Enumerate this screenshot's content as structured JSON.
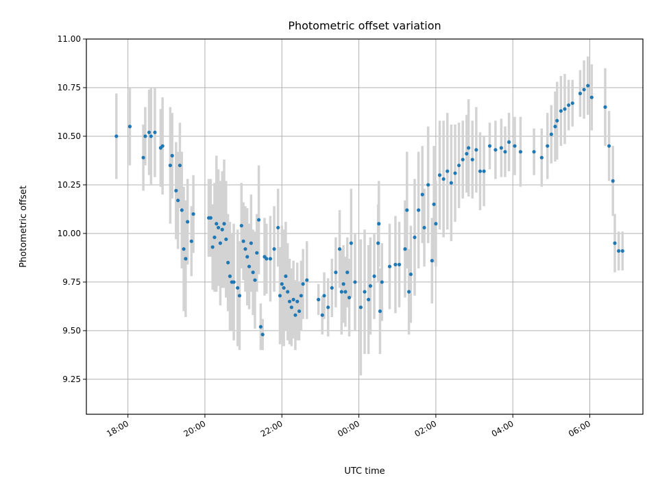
{
  "chart_data": {
    "type": "scatter",
    "title": "Photometric offset variation",
    "xlabel": "UTC time",
    "ylabel": "Photometric offset",
    "x_unit": "hours UTC (values past 24 are after midnight)",
    "xlim": [
      16.92,
      31.38
    ],
    "ylim": [
      9.07,
      11.0
    ],
    "grid": true,
    "x_ticks": [
      {
        "value": 18,
        "label": "18:00"
      },
      {
        "value": 20,
        "label": "20:00"
      },
      {
        "value": 22,
        "label": "22:00"
      },
      {
        "value": 24,
        "label": "00:00"
      },
      {
        "value": 26,
        "label": "02:00"
      },
      {
        "value": 28,
        "label": "04:00"
      },
      {
        "value": 30,
        "label": "06:00"
      }
    ],
    "y_ticks": [
      {
        "value": 9.25,
        "label": "9.25"
      },
      {
        "value": 9.5,
        "label": "9.50"
      },
      {
        "value": 9.75,
        "label": "9.75"
      },
      {
        "value": 10.0,
        "label": "10.00"
      },
      {
        "value": 10.25,
        "label": "10.25"
      },
      {
        "value": 10.5,
        "label": "10.50"
      },
      {
        "value": 10.75,
        "label": "10.75"
      },
      {
        "value": 11.0,
        "label": "11.00"
      }
    ],
    "colors": {
      "points": "#1f77b4",
      "errorbars": "#d3d3d3",
      "grid": "#b0b0b0"
    },
    "series": [
      {
        "x": [
          17.7,
          18.05,
          18.4,
          18.45,
          18.55,
          18.6,
          18.7,
          18.85,
          18.9,
          19.1,
          19.15,
          19.25,
          19.3,
          19.35,
          19.4,
          19.45,
          19.5,
          19.55,
          19.65,
          19.7,
          20.1,
          20.15,
          20.2,
          20.25,
          20.3,
          20.35,
          20.4,
          20.45,
          20.5,
          20.55,
          20.6,
          20.65,
          20.7,
          20.75,
          20.85,
          20.9,
          20.95,
          21.0,
          21.05,
          21.1,
          21.15,
          21.2,
          21.25,
          21.3,
          21.35,
          21.4,
          21.45,
          21.5,
          21.55,
          21.6,
          21.7,
          21.8,
          21.9,
          21.95,
          22.0,
          22.05,
          22.1,
          22.15,
          22.2,
          22.25,
          22.3,
          22.35,
          22.4,
          22.45,
          22.5,
          22.55,
          22.65,
          22.95,
          23.05,
          23.1,
          23.2,
          23.3,
          23.4,
          23.5,
          23.55,
          23.6,
          23.65,
          23.7,
          23.75,
          23.8,
          23.9,
          24.05,
          24.15,
          24.25,
          24.3,
          24.4,
          24.5,
          24.52,
          24.55,
          24.6,
          24.8,
          24.95,
          25.05,
          25.2,
          25.25,
          25.3,
          25.35,
          25.45,
          25.55,
          25.65,
          25.7,
          25.8,
          25.9,
          25.95,
          26.0,
          26.1,
          26.2,
          26.3,
          26.4,
          26.5,
          26.6,
          26.7,
          26.8,
          26.85,
          26.95,
          27.05,
          27.15,
          27.25,
          27.4,
          27.55,
          27.7,
          27.8,
          27.9,
          28.05,
          28.2,
          28.55,
          28.75,
          28.9,
          29.0,
          29.1,
          29.15,
          29.25,
          29.35,
          29.45,
          29.55,
          29.75,
          29.85,
          29.95,
          30.05,
          30.4,
          30.5,
          30.6,
          30.65,
          30.75,
          30.85
        ],
        "y": [
          10.5,
          10.55,
          10.39,
          10.5,
          10.52,
          10.5,
          10.52,
          10.44,
          10.45,
          10.35,
          10.4,
          10.22,
          10.17,
          10.35,
          10.12,
          9.92,
          9.87,
          10.06,
          9.96,
          10.1,
          10.08,
          10.08,
          9.93,
          9.98,
          10.05,
          10.03,
          9.95,
          10.02,
          10.05,
          9.97,
          9.85,
          9.78,
          9.75,
          9.75,
          9.72,
          9.68,
          10.04,
          9.96,
          9.92,
          9.88,
          9.83,
          9.95,
          9.8,
          9.76,
          9.9,
          10.07,
          9.52,
          9.48,
          9.88,
          9.87,
          9.87,
          9.92,
          10.03,
          9.68,
          9.74,
          9.72,
          9.78,
          9.7,
          9.65,
          9.62,
          9.66,
          9.58,
          9.65,
          9.6,
          9.68,
          9.74,
          9.76,
          9.66,
          9.58,
          9.68,
          9.62,
          9.72,
          9.8,
          9.92,
          9.7,
          9.74,
          9.7,
          9.8,
          9.67,
          9.95,
          9.75,
          9.62,
          9.7,
          9.66,
          9.73,
          9.78,
          9.95,
          10.05,
          9.6,
          9.75,
          9.83,
          9.84,
          9.84,
          9.92,
          10.12,
          9.7,
          9.79,
          9.98,
          10.12,
          10.2,
          10.03,
          10.25,
          9.86,
          10.15,
          10.05,
          10.3,
          10.28,
          10.32,
          10.26,
          10.31,
          10.35,
          10.38,
          10.41,
          10.44,
          10.38,
          10.43,
          10.32,
          10.32,
          10.45,
          10.43,
          10.44,
          10.42,
          10.47,
          10.45,
          10.42,
          10.42,
          10.39,
          10.45,
          10.51,
          10.55,
          10.58,
          10.63,
          10.64,
          10.66,
          10.67,
          10.72,
          10.74,
          10.76,
          10.7,
          10.65,
          10.45,
          10.27,
          9.95,
          9.91,
          9.91
        ],
        "err": [
          0.22,
          0.2,
          0.17,
          0.15,
          0.22,
          0.25,
          0.23,
          0.2,
          0.25,
          0.3,
          0.22,
          0.25,
          0.25,
          0.22,
          0.3,
          0.32,
          0.3,
          0.22,
          0.18,
          0.2,
          0.2,
          0.2,
          0.22,
          0.28,
          0.35,
          0.3,
          0.32,
          0.3,
          0.33,
          0.3,
          0.25,
          0.28,
          0.25,
          0.3,
          0.3,
          0.28,
          0.22,
          0.2,
          0.22,
          0.25,
          0.22,
          0.25,
          0.22,
          0.25,
          0.2,
          0.28,
          0.12,
          0.08,
          0.2,
          0.18,
          0.22,
          0.22,
          0.2,
          0.25,
          0.3,
          0.3,
          0.28,
          0.25,
          0.22,
          0.2,
          0.2,
          0.18,
          0.2,
          0.15,
          0.18,
          0.18,
          0.2,
          0.08,
          0.1,
          0.12,
          0.15,
          0.15,
          0.18,
          0.2,
          0.22,
          0.2,
          0.18,
          0.18,
          0.2,
          0.28,
          0.25,
          0.35,
          0.32,
          0.28,
          0.25,
          0.22,
          0.2,
          0.22,
          0.22,
          0.2,
          0.22,
          0.25,
          0.22,
          0.25,
          0.3,
          0.22,
          0.25,
          0.3,
          0.3,
          0.25,
          0.2,
          0.3,
          0.22,
          0.3,
          0.22,
          0.28,
          0.3,
          0.3,
          0.3,
          0.25,
          0.22,
          0.2,
          0.2,
          0.25,
          0.2,
          0.22,
          0.2,
          0.18,
          0.12,
          0.15,
          0.15,
          0.13,
          0.15,
          0.15,
          0.18,
          0.12,
          0.15,
          0.17,
          0.15,
          0.18,
          0.2,
          0.18,
          0.18,
          0.13,
          0.12,
          0.12,
          0.15,
          0.15,
          0.17,
          0.2,
          0.18,
          0.18,
          0.15,
          0.1,
          0.1
        ]
      }
    ]
  }
}
